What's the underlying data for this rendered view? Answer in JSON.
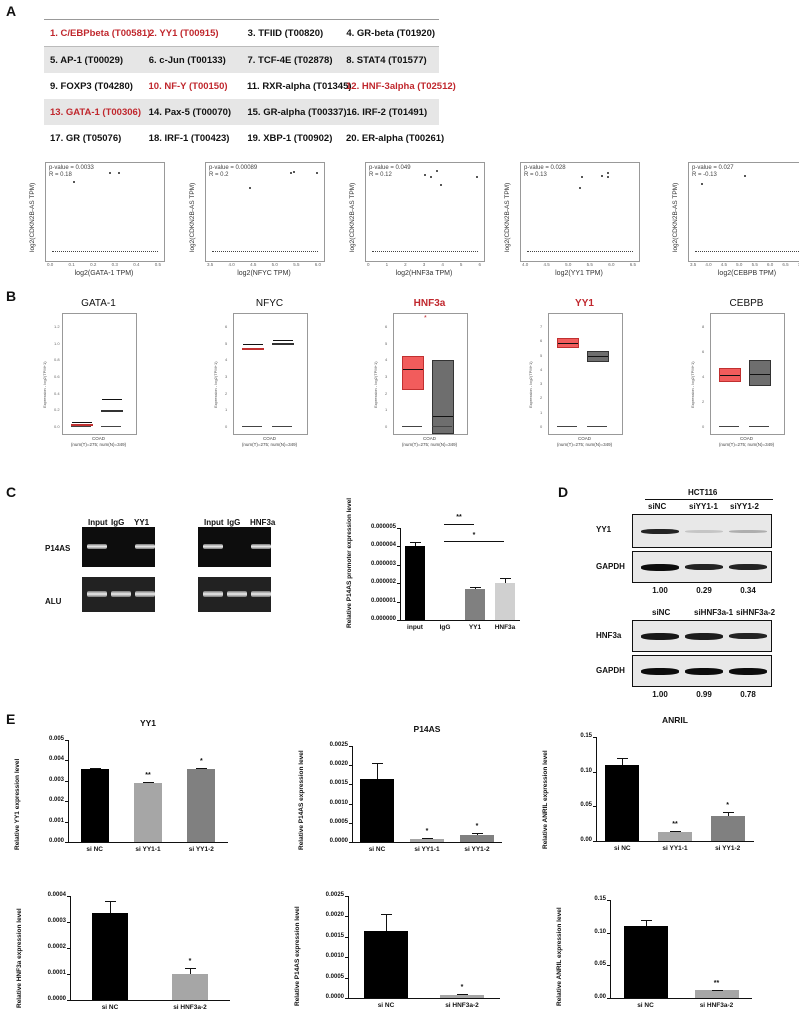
{
  "panels": {
    "A": "A",
    "B": "B",
    "C": "C",
    "D": "D",
    "E": "E"
  },
  "colors": {
    "highlight": "#c0272d",
    "tumor": "#f25c5c",
    "normal": "#6e6e6e",
    "bar_black": "#000000",
    "bar_light": "#a6a6a6",
    "bar_mid": "#808080",
    "bar_lighter": "#d0d0d0"
  },
  "tf_table": {
    "rows": [
      [
        {
          "text": "1. C/EBPbeta  (T00581)",
          "hl": true
        },
        {
          "text": "2. YY1 (T00915)",
          "hl": true
        },
        {
          "text": "3. TFIID (T00820)",
          "hl": false
        },
        {
          "text": "4. GR-beta (T01920)",
          "hl": false
        }
      ],
      [
        {
          "text": "5. AP-1 (T00029)",
          "hl": false
        },
        {
          "text": "6. c-Jun (T00133)",
          "hl": false
        },
        {
          "text": "7. TCF-4E (T02878)",
          "hl": false
        },
        {
          "text": "8. STAT4 (T01577)",
          "hl": false
        }
      ],
      [
        {
          "text": "9. FOXP3 (T04280)",
          "hl": false
        },
        {
          "text": "10. NF-Y (T00150)",
          "hl": true
        },
        {
          "text": "11. RXR-alpha (T01345)",
          "hl": false
        },
        {
          "text": "12. HNF-3alpha (T02512)",
          "hl": true
        }
      ],
      [
        {
          "text": "13. GATA-1 (T00306)",
          "hl": true
        },
        {
          "text": "14. Pax-5 (T00070)",
          "hl": false
        },
        {
          "text": "15. GR-alpha (T00337)",
          "hl": false
        },
        {
          "text": "16. IRF-2 (T01491)",
          "hl": false
        }
      ],
      [
        {
          "text": "17. GR (T05076)",
          "hl": false
        },
        {
          "text": "18. IRF-1 (T00423)",
          "hl": false
        },
        {
          "text": "19. XBP-1 (T00902)",
          "hl": false
        },
        {
          "text": "20. ER-alpha (T00261)",
          "hl": false
        }
      ]
    ]
  },
  "scatter_plots": [
    {
      "p": "p-value = 0.0033",
      "r": "R = 0.18",
      "xlabel": "log2(GATA-1 TPM)",
      "ylabel": "log2(CDKN2B-AS TPM)",
      "xticks": [
        "0.0",
        "0.1",
        "0.2",
        "0.3",
        "0.4",
        "0.5"
      ]
    },
    {
      "p": "p-value = 0.00089",
      "r": "R = 0.2",
      "xlabel": "log2(NFYC TPM)",
      "ylabel": "log2(CDKN2B-AS TPM)",
      "xticks": [
        "3.5",
        "4.0",
        "4.5",
        "5.0",
        "5.5",
        "6.0"
      ]
    },
    {
      "p": "p-value = 0.049",
      "r": "R = 0.12",
      "xlabel": "log2(HNF3a TPM)",
      "ylabel": "log2(CDKN2B-AS TPM)",
      "xticks": [
        "0",
        "1",
        "2",
        "3",
        "4",
        "5",
        "6"
      ]
    },
    {
      "p": "p-value = 0.028",
      "r": "R = 0.13",
      "xlabel": "log2(YY1 TPM)",
      "ylabel": "log2(CDKN2B-AS TPM)",
      "xticks": [
        "4.0",
        "4.5",
        "5.0",
        "5.5",
        "6.0",
        "6.5"
      ]
    },
    {
      "p": "p-value = 0.027",
      "r": "R = -0.13",
      "xlabel": "log2(CEBPB TPM)",
      "ylabel": "log2(CDKN2B-AS TPM)",
      "xticks": [
        "3.5",
        "4.0",
        "4.5",
        "5.0",
        "5.5",
        "6.0",
        "6.5",
        "7.0"
      ]
    }
  ],
  "scatter_yticks": [
    "0.0",
    "0.5",
    "1.0",
    "1.5",
    "2.0"
  ],
  "boxplots": [
    {
      "title": "GATA-1",
      "hl": false,
      "yticks": [
        "0.0",
        "0.2",
        "0.4",
        "0.6",
        "0.8",
        "1.0",
        "1.2"
      ]
    },
    {
      "title": "NFYC",
      "hl": false,
      "yticks": [
        "0",
        "1",
        "2",
        "3",
        "4",
        "5",
        "6"
      ]
    },
    {
      "title": "HNF3a",
      "hl": true,
      "yticks": [
        "0",
        "1",
        "2",
        "3",
        "4",
        "5",
        "6"
      ],
      "sig": "*"
    },
    {
      "title": "YY1",
      "hl": true,
      "yticks": [
        "0",
        "1",
        "2",
        "3",
        "4",
        "5",
        "6",
        "7"
      ]
    },
    {
      "title": "CEBPB",
      "hl": false,
      "yticks": [
        "0",
        "2",
        "4",
        "6",
        "8"
      ]
    }
  ],
  "boxplot_common": {
    "xlabel": "COAD",
    "xsub": "(num(T)=275; num(N)=349)",
    "ylabel": "Expression - log2(TPM+1)"
  },
  "gel": {
    "lanes_left": [
      "Input",
      "IgG",
      "YY1"
    ],
    "lanes_right": [
      "Input",
      "IgG",
      "HNF3a"
    ],
    "rows": [
      "P14AS",
      "ALU"
    ]
  },
  "chip_bar": {
    "ylabel": "Relative P14AS promoter expression level",
    "yticks": [
      "0.000000",
      "0.000001",
      "0.000002",
      "0.000003",
      "0.000004",
      "0.000005"
    ],
    "categories": [
      "input",
      "IgG",
      "YY1",
      "HNF3a"
    ],
    "sig1": "**",
    "sig2": "*"
  },
  "western": {
    "cell_line": "HCT116",
    "lanes_top": [
      "siNC",
      "siYY1-1",
      "siYY1-2"
    ],
    "rows_top": [
      "YY1",
      "GAPDH"
    ],
    "quant_top": [
      "1.00",
      "0.29",
      "0.34"
    ],
    "lanes_bottom": [
      "siNC",
      "siHNF3a-1",
      "siHNF3a-2"
    ],
    "rows_bottom": [
      "HNF3a",
      "GAPDH"
    ],
    "quant_bottom": [
      "1.00",
      "0.99",
      "0.78"
    ]
  },
  "chart_data": [
    {
      "type": "bar",
      "title": "",
      "panel": "C",
      "ylabel": "Relative P14AS promoter expression level",
      "categories": [
        "input",
        "IgG",
        "YY1",
        "HNF3a"
      ],
      "values": [
        4e-06,
        0.0,
        1.7e-06,
        2e-06
      ],
      "errors": [
        2.5e-07,
        0,
        1e-07,
        3e-07
      ],
      "ylim": [
        0,
        5e-06
      ],
      "annotations": [
        "** IgG vs YY1",
        "* IgG vs HNF3a"
      ]
    },
    {
      "type": "bar",
      "title": "YY1",
      "panel": "E",
      "ylabel": "Relative YY1 expression level",
      "categories": [
        "si NC",
        "si YY1-1",
        "si YY1-2"
      ],
      "values": [
        0.0036,
        0.0029,
        0.0036
      ],
      "errors": [
        5e-05,
        3e-05,
        3e-05
      ],
      "ylim": [
        0,
        0.005
      ],
      "yticks": [
        "0.000",
        "0.001",
        "0.002",
        "0.003",
        "0.004",
        "0.005"
      ],
      "sig": [
        "",
        "**",
        "*"
      ]
    },
    {
      "type": "bar",
      "title": "P14AS",
      "panel": "E",
      "ylabel": "Relative P14AS expression level",
      "categories": [
        "si NC",
        "si YY1-1",
        "si YY1-2"
      ],
      "values": [
        0.00163,
        8e-05,
        0.00017
      ],
      "errors": [
        0.00043,
        2e-05,
        6e-05
      ],
      "ylim": [
        0,
        0.0025
      ],
      "yticks": [
        "0.0000",
        "0.0005",
        "0.0010",
        "0.0015",
        "0.0020",
        "0.0025"
      ],
      "sig": [
        "",
        "*",
        "*"
      ]
    },
    {
      "type": "bar",
      "title": "ANRIL",
      "panel": "E",
      "ylabel": "Relative ANRIL expression level",
      "categories": [
        "si NC",
        "si YY1-1",
        "si YY1-2"
      ],
      "values": [
        0.11,
        0.013,
        0.036
      ],
      "errors": [
        0.01,
        0.001,
        0.006
      ],
      "ylim": [
        0,
        0.15
      ],
      "yticks": [
        "0.00",
        "0.05",
        "0.10",
        "0.15"
      ],
      "sig": [
        "",
        "**",
        "*"
      ]
    },
    {
      "type": "bar",
      "title": "",
      "panel": "E",
      "ylabel": "Relative HNF3a expression level",
      "categories": [
        "si NC",
        "si HNF3a-2"
      ],
      "values": [
        0.000335,
        0.0001
      ],
      "errors": [
        4.5e-05,
        2.5e-05
      ],
      "ylim": [
        0,
        0.0004
      ],
      "yticks": [
        "0.0000",
        "0.0001",
        "0.0002",
        "0.0003",
        "0.0004"
      ],
      "sig": [
        "",
        "*"
      ]
    },
    {
      "type": "bar",
      "title": "",
      "panel": "E",
      "ylabel": "Relative P14AS expression level",
      "categories": [
        "si NC",
        "si HNF3a-2"
      ],
      "values": [
        0.00163,
        8e-05
      ],
      "errors": [
        0.00044,
        2e-05
      ],
      "ylim": [
        0,
        0.0025
      ],
      "yticks": [
        "0.0000",
        "0.0005",
        "0.0010",
        "0.0015",
        "0.0020",
        "0.0025"
      ],
      "sig": [
        "",
        "*"
      ]
    },
    {
      "type": "bar",
      "title": "",
      "panel": "E",
      "ylabel": "Relative ANRIL expression level",
      "categories": [
        "si NC",
        "si HNF3a-2"
      ],
      "values": [
        0.11,
        0.012
      ],
      "errors": [
        0.01,
        0.001
      ],
      "ylim": [
        0,
        0.15
      ],
      "yticks": [
        "0.00",
        "0.05",
        "0.10",
        "0.15"
      ],
      "sig": [
        "",
        "**"
      ]
    }
  ]
}
